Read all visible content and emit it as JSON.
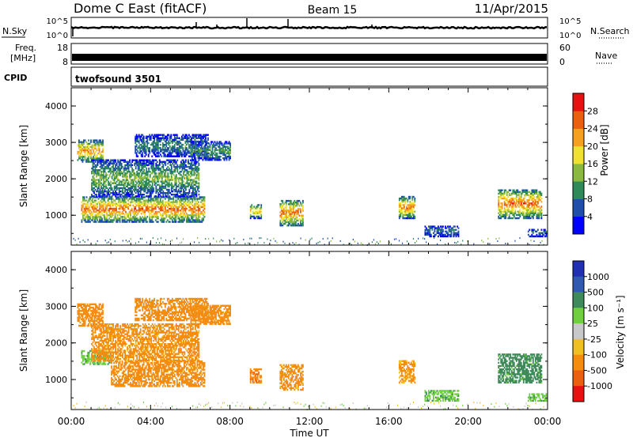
{
  "header": {
    "station": "Dome C East (fitACF)",
    "beam": "Beam 15",
    "date": "11/Apr/2015"
  },
  "top_panels": {
    "nsky_label": "N.Sky",
    "nsearch_label": "N.Search",
    "noise_ticks_left": [
      "10^5",
      "10^0"
    ],
    "noise_ticks_right": [
      "10^5",
      "10^0"
    ],
    "freq_label_1": "Freq.",
    "freq_label_2": "[MHz]",
    "freq_ticks": [
      "18",
      "8"
    ],
    "nave_label": "Nave",
    "nave_ticks": [
      "60",
      "0"
    ],
    "cpid_label": "CPID",
    "cpid_value": "twofsound 3501"
  },
  "chart_data": [
    {
      "type": "heatmap",
      "parameter": "power",
      "ylabel": "Slant Range [km]",
      "ylim": [
        180,
        4500
      ],
      "yticks": [
        "1000",
        "2000",
        "3000",
        "4000"
      ],
      "xlim": [
        0,
        24
      ],
      "colorbar_label": "Power [dB]",
      "colorbar_ticks": [
        "4",
        "8",
        "12",
        "16",
        "20",
        "24",
        "28"
      ],
      "colorbar_colors": [
        "#0000ff",
        "#1f4fa8",
        "#2f8a5a",
        "#8ab840",
        "#f0e030",
        "#f4a020",
        "#e86010",
        "#e81010"
      ],
      "echo_regions": [
        {
          "t0": 0.3,
          "t1": 1.6,
          "r0": 2450,
          "r1": 3050,
          "v": 24
        },
        {
          "t0": 0.5,
          "t1": 6.7,
          "r0": 800,
          "r1": 1500,
          "v": 26
        },
        {
          "t0": 1.0,
          "t1": 6.4,
          "r0": 1500,
          "r1": 2500,
          "v": 14
        },
        {
          "t0": 3.2,
          "t1": 6.9,
          "r0": 2600,
          "r1": 3200,
          "v": 10
        },
        {
          "t0": 6.0,
          "t1": 8.0,
          "r0": 2500,
          "r1": 3000,
          "v": 12
        },
        {
          "t0": 9.0,
          "t1": 9.6,
          "r0": 900,
          "r1": 1300,
          "v": 20
        },
        {
          "t0": 10.5,
          "t1": 11.7,
          "r0": 700,
          "r1": 1400,
          "v": 26
        },
        {
          "t0": 16.5,
          "t1": 17.3,
          "r0": 900,
          "r1": 1500,
          "v": 24
        },
        {
          "t0": 17.8,
          "t1": 19.5,
          "r0": 400,
          "r1": 700,
          "v": 8
        },
        {
          "t0": 21.5,
          "t1": 23.7,
          "r0": 900,
          "r1": 1700,
          "v": 26
        },
        {
          "t0": 23.0,
          "t1": 23.9,
          "r0": 400,
          "r1": 600,
          "v": 8
        }
      ]
    },
    {
      "type": "heatmap",
      "parameter": "velocity",
      "ylabel": "Slant Range [km]",
      "ylim": [
        180,
        4500
      ],
      "yticks": [
        "1000",
        "2000",
        "3000",
        "4000"
      ],
      "xlabel": "Time UT",
      "xticks": [
        "00:00",
        "04:00",
        "08:00",
        "12:00",
        "16:00",
        "20:00",
        "00:00"
      ],
      "xlim": [
        0,
        24
      ],
      "colorbar_label": "Velocity [m s⁻¹]",
      "colorbar_ticks": [
        "1000",
        "500",
        "100",
        "25",
        "-25",
        "-100",
        "-500",
        "-1000"
      ],
      "colorbar_colors": [
        "#2030b0",
        "#2f5ab0",
        "#3f8a5a",
        "#6fcf40",
        "#c8c8c8",
        "#f0c020",
        "#f48c10",
        "#e86010",
        "#e81010"
      ],
      "echo_regions": [
        {
          "t0": 0.3,
          "t1": 1.6,
          "r0": 2450,
          "r1": 3050,
          "v": -200
        },
        {
          "t0": 0.5,
          "t1": 2.0,
          "r0": 1400,
          "r1": 1800,
          "v": 80
        },
        {
          "t0": 2.0,
          "t1": 6.7,
          "r0": 800,
          "r1": 1500,
          "v": -300
        },
        {
          "t0": 1.0,
          "t1": 6.4,
          "r0": 1500,
          "r1": 2500,
          "v": -150
        },
        {
          "t0": 3.2,
          "t1": 6.9,
          "r0": 2600,
          "r1": 3200,
          "v": -250
        },
        {
          "t0": 6.0,
          "t1": 8.0,
          "r0": 2500,
          "r1": 3000,
          "v": -300
        },
        {
          "t0": 9.0,
          "t1": 9.6,
          "r0": 900,
          "r1": 1300,
          "v": -400
        },
        {
          "t0": 10.5,
          "t1": 11.7,
          "r0": 700,
          "r1": 1400,
          "v": -150
        },
        {
          "t0": 16.5,
          "t1": 17.3,
          "r0": 900,
          "r1": 1500,
          "v": -120
        },
        {
          "t0": 17.8,
          "t1": 19.5,
          "r0": 400,
          "r1": 700,
          "v": 80
        },
        {
          "t0": 21.5,
          "t1": 23.7,
          "r0": 900,
          "r1": 1700,
          "v": 150
        },
        {
          "t0": 23.0,
          "t1": 23.9,
          "r0": 400,
          "r1": 600,
          "v": 80
        }
      ]
    }
  ]
}
